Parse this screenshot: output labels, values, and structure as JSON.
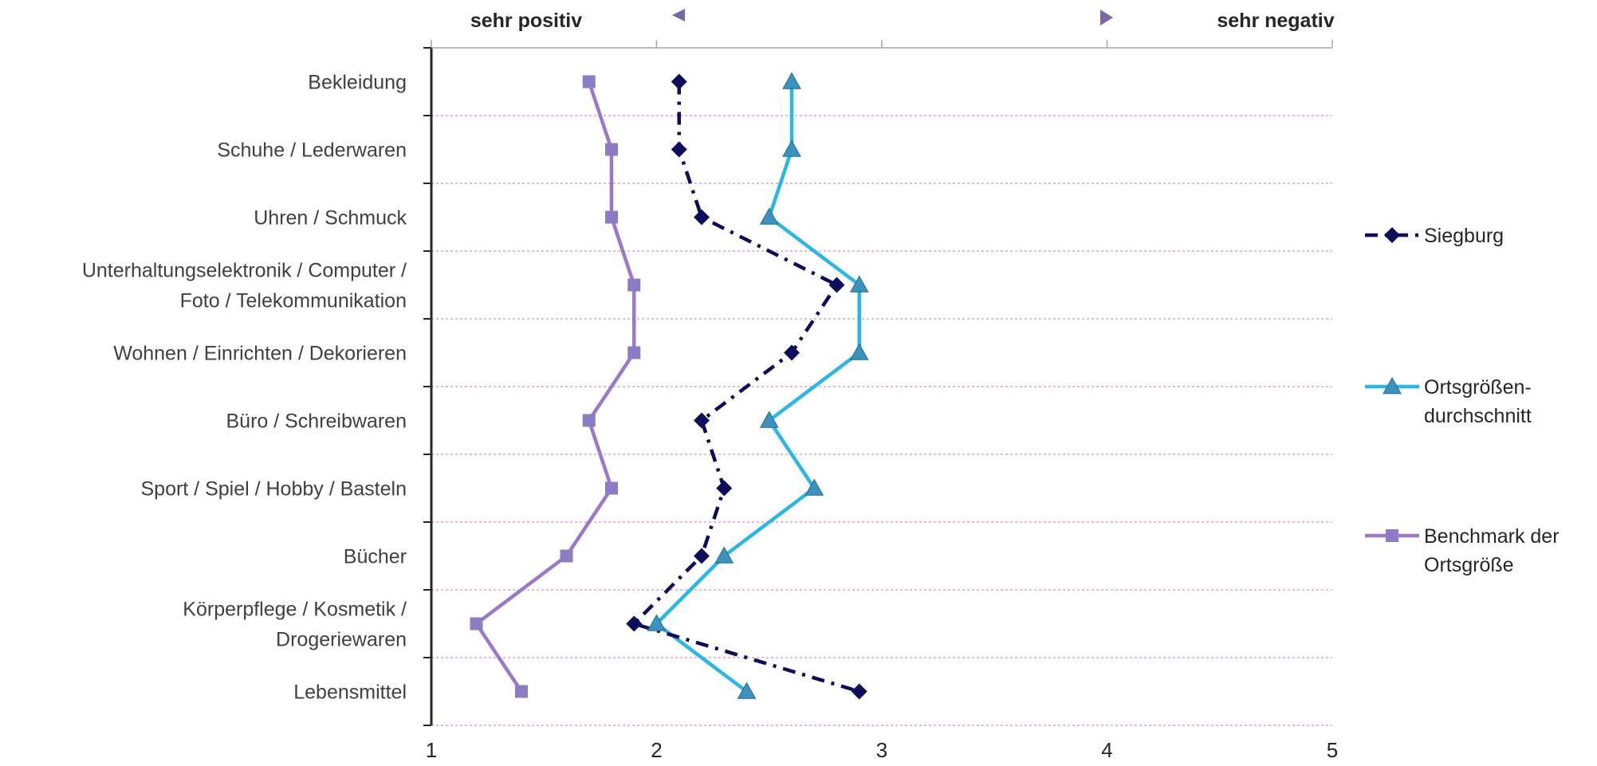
{
  "chart_data": {
    "type": "line",
    "orientation": "horizontal-values",
    "categories": [
      [
        "Bekleidung"
      ],
      [
        "Schuhe / Lederwaren"
      ],
      [
        "Uhren / Schmuck"
      ],
      [
        "Unterhaltungselektronik / Computer /",
        "Foto / Telekommunikation"
      ],
      [
        "Wohnen / Einrichten / Dekorieren"
      ],
      [
        "Büro / Schreibwaren"
      ],
      [
        "Sport / Spiel / Hobby / Basteln"
      ],
      [
        "Bücher"
      ],
      [
        "Körperpflege / Kosmetik /",
        "Drogeriewaren"
      ],
      [
        "Lebensmittel"
      ]
    ],
    "series": [
      {
        "name": [
          "Siegburg"
        ],
        "values": [
          2.1,
          2.1,
          2.2,
          2.8,
          2.6,
          2.2,
          2.3,
          2.2,
          1.9,
          2.9
        ],
        "color": "#0d0d5c",
        "marker": "diamond",
        "dash": "dash-dot"
      },
      {
        "name": [
          "Ortsgrößen-",
          "durchschnitt"
        ],
        "values": [
          2.6,
          2.6,
          2.5,
          2.9,
          2.9,
          2.5,
          2.7,
          2.3,
          2.0,
          2.4
        ],
        "color": "#29b6ea",
        "marker_color": "#3a92bd",
        "marker": "triangle",
        "dash": "solid"
      },
      {
        "name": [
          "Benchmark der",
          "Ortsgröße"
        ],
        "values": [
          1.7,
          1.8,
          1.8,
          1.9,
          1.9,
          1.7,
          1.8,
          1.6,
          1.2,
          1.4
        ],
        "color": "#9a79cc",
        "marker_color": "#8c7cc4",
        "marker": "square",
        "dash": "solid"
      }
    ],
    "x_ticks": [
      "1",
      "2",
      "3",
      "4",
      "5"
    ],
    "xlim": [
      1,
      5
    ],
    "top_labels": {
      "left": "sehr positiv",
      "right": "sehr negativ"
    },
    "arrow_color": "#7b66a8",
    "gridline_color": "#c86fd6",
    "legend_position": "right"
  }
}
